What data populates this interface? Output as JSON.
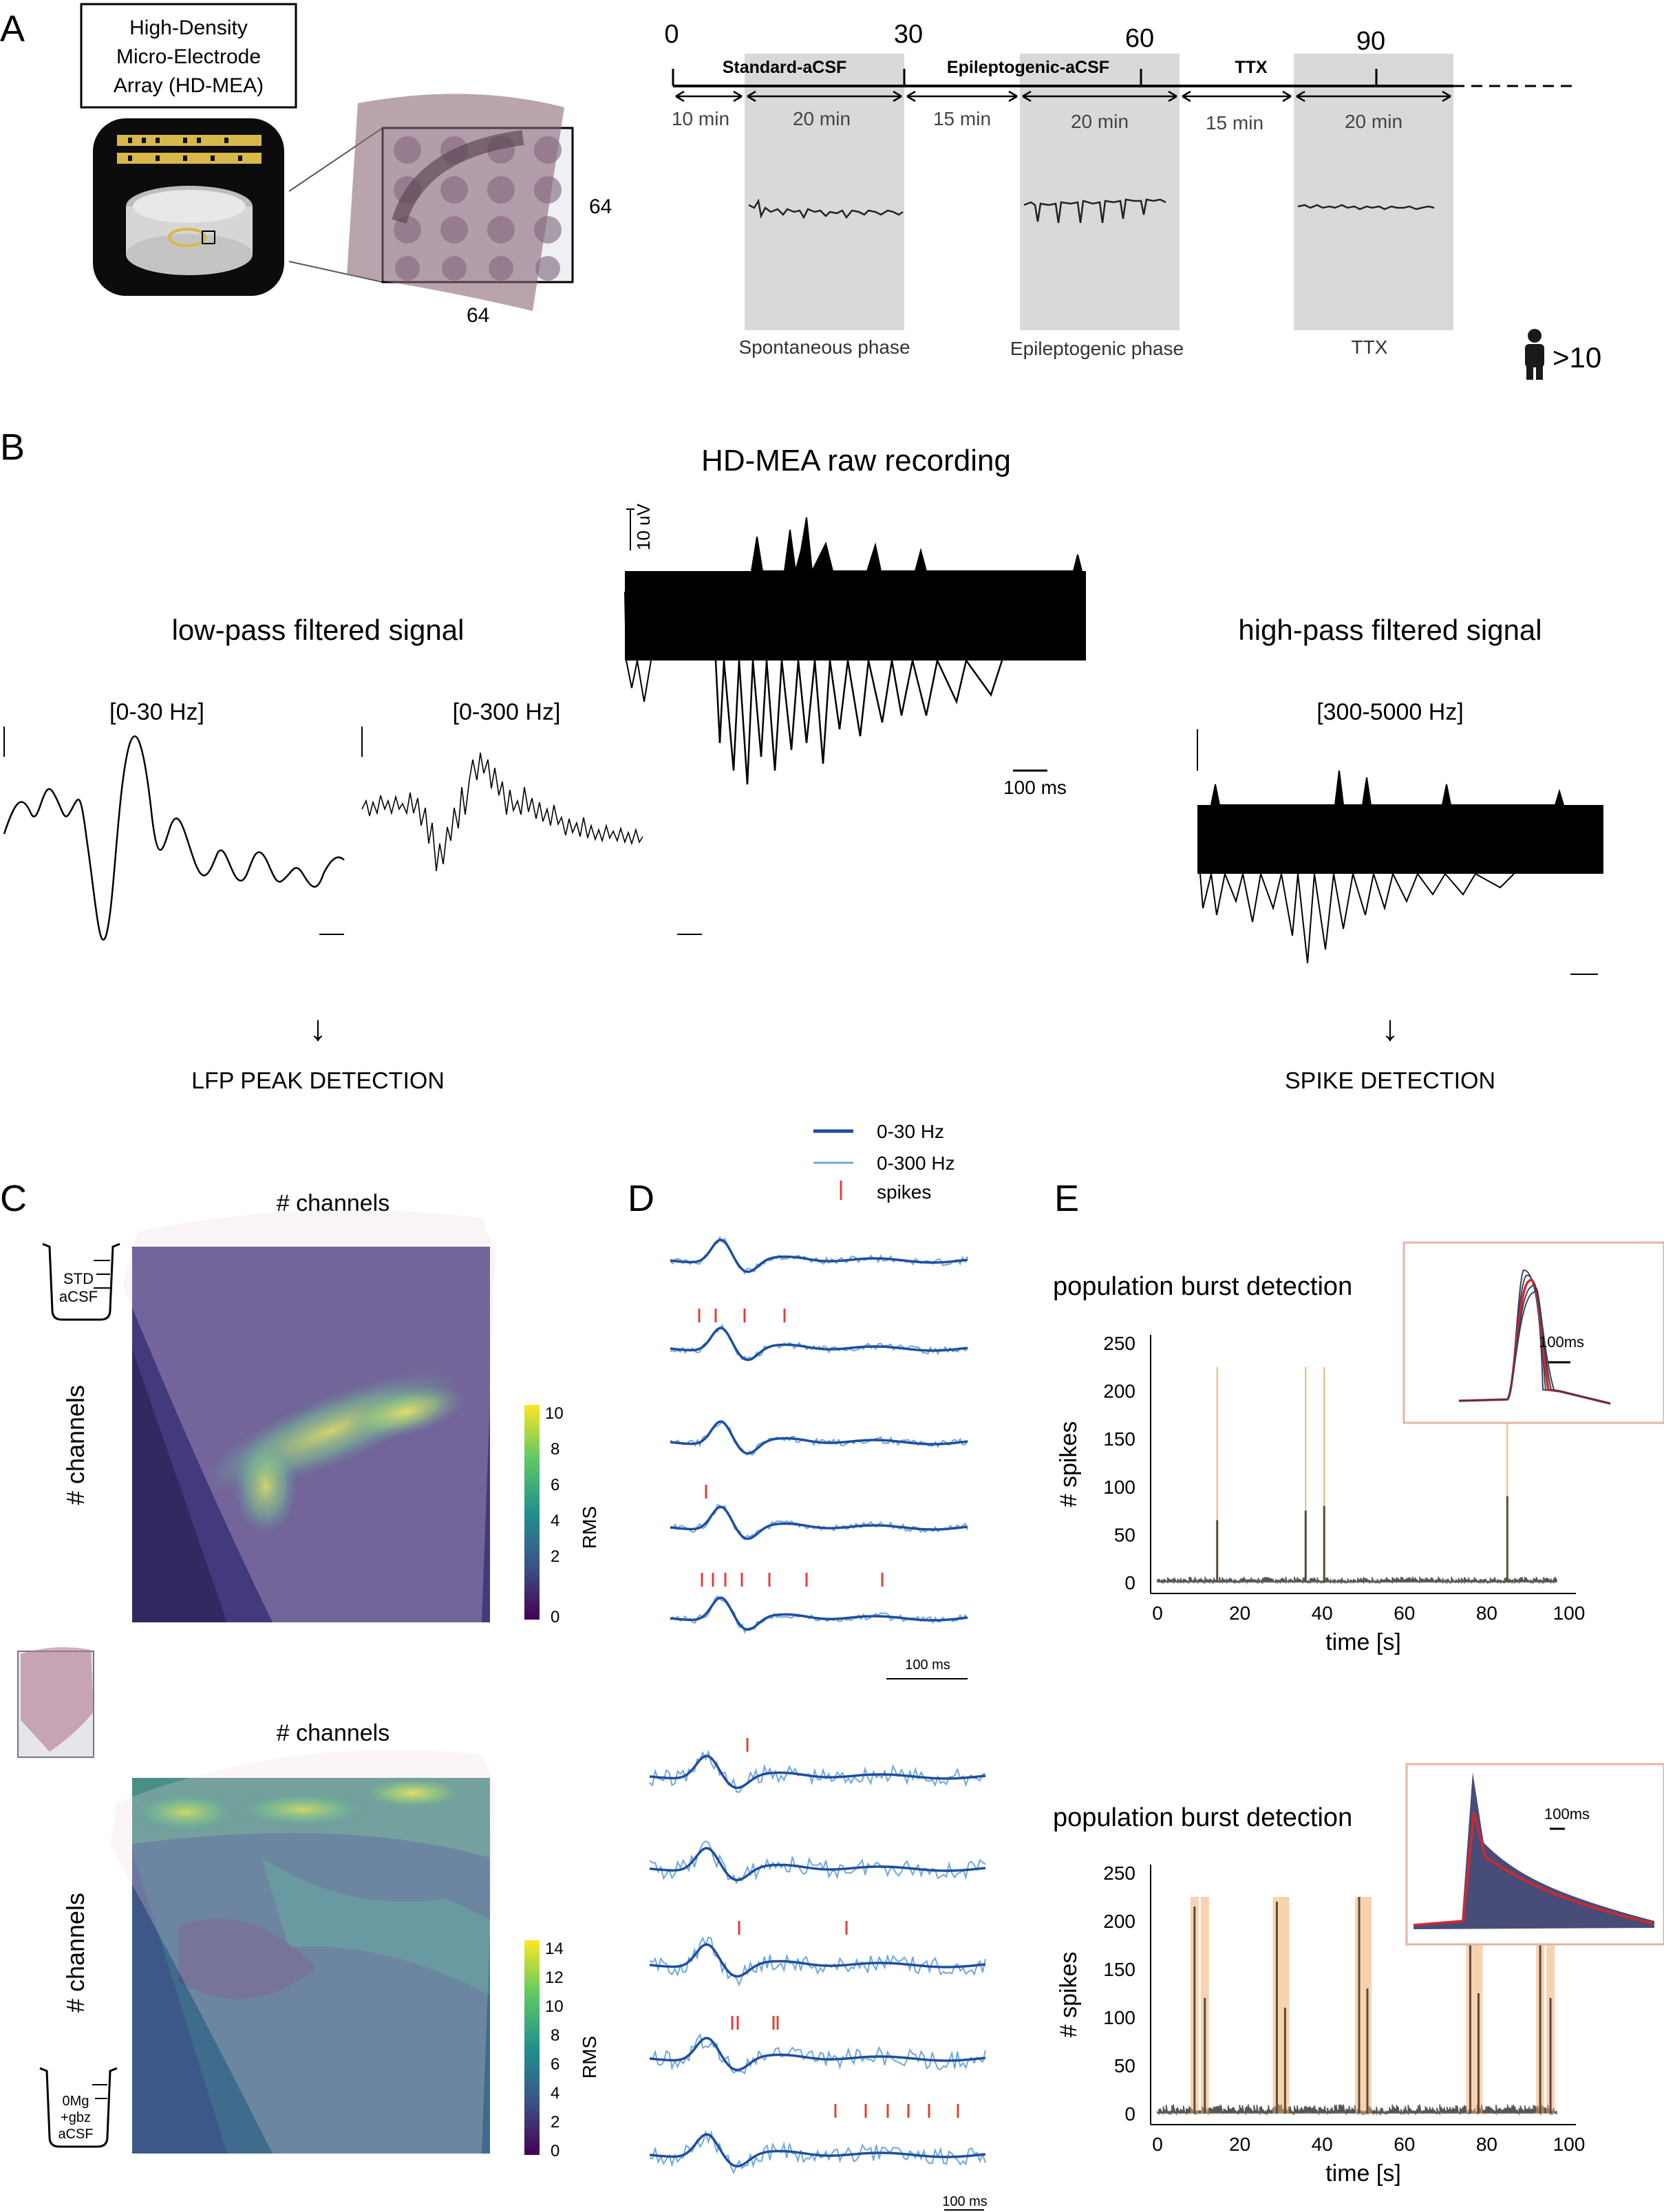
{
  "panel_letters": {
    "a": "A",
    "b": "B",
    "c": "C",
    "d": "D",
    "e": "E"
  },
  "panel_a": {
    "device_label": [
      "High-Density",
      "Micro-Electrode",
      "Array (HD-MEA)"
    ],
    "grid_size_right": "64",
    "grid_size_bottom": "64",
    "time_ticks": [
      "0",
      "30",
      "60",
      "90"
    ],
    "segments": [
      "Standard-aCSF",
      "Epileptogenic-aCSF",
      "TTX"
    ],
    "durations": [
      "10 min",
      "20 min",
      "15 min",
      "20 min",
      "15 min",
      "20 min"
    ],
    "phases": [
      "Spontaneous phase",
      "Epileptogenic phase",
      "TTX"
    ],
    "patients": ">10"
  },
  "panel_b": {
    "title": "HD-MEA raw recording",
    "raw_scale_v": "10 uV",
    "raw_scale_t": "100 ms",
    "low_title": "low-pass filtered signal",
    "low_band1": "[0-30 Hz]",
    "low_band2": "[0-300 Hz]",
    "high_title": "high-pass filtered signal",
    "high_band": "[300-5000 Hz]",
    "arrow": "↓",
    "lfp_detect": "LFP PEAK DETECTION",
    "spike_detect": "SPIKE DETECTION"
  },
  "panel_c": {
    "top_title": "# channels",
    "bottom_title": "# channels",
    "ylabel": "# channels",
    "beaker_top": [
      "STD",
      "aCSF"
    ],
    "beaker_bottom": [
      "0Mg",
      "+gbz",
      "aCSF"
    ],
    "colorbar_label": "RMS",
    "colorbar_top_ticks": [
      "10",
      "8",
      "6",
      "4",
      "2",
      "0"
    ],
    "colorbar_bottom_ticks": [
      "14",
      "12",
      "10",
      "8",
      "6",
      "4",
      "2",
      "0"
    ],
    "colors": {
      "viridis_low": "#440154",
      "viridis_mid": "#21918c",
      "viridis_high": "#fde725"
    }
  },
  "panel_d": {
    "legend": [
      "0-30 Hz",
      "0-300 Hz",
      "spikes"
    ],
    "scale_top": "100 ms",
    "scale_bottom": "100 ms",
    "colors": {
      "lfp30": "#1f4e9c",
      "lfp300": "#6fa8dc",
      "spike": "#e0403a"
    }
  },
  "panel_e": {
    "chart_data": [
      {
        "type": "bar",
        "title": "population burst detection",
        "xlabel": "time [s]",
        "ylabel": "# spikes",
        "xlim": [
          0,
          100
        ],
        "ylim": [
          0,
          250
        ],
        "x_ticks": [
          "0",
          "20",
          "40",
          "60",
          "80",
          "100"
        ],
        "y_ticks": [
          "250",
          "200",
          "150",
          "100",
          "50",
          "0"
        ],
        "burst_times": [
          14.5,
          36,
          40.5,
          85
        ],
        "burst_peaks": [
          65,
          75,
          80,
          90
        ],
        "baseline_spikes": 5,
        "inset_scale": "100ms"
      },
      {
        "type": "bar",
        "title": "population burst detection",
        "xlabel": "time [s]",
        "ylabel": "# spikes",
        "xlim": [
          0,
          100
        ],
        "ylim": [
          0,
          250
        ],
        "x_ticks": [
          "0",
          "20",
          "40",
          "60",
          "80",
          "100"
        ],
        "y_ticks": [
          "250",
          "200",
          "150",
          "100",
          "50",
          "0"
        ],
        "burst_times": [
          9,
          11.5,
          29,
          31,
          49,
          51,
          76,
          78,
          93,
          95.5
        ],
        "burst_peaks": [
          215,
          120,
          220,
          110,
          225,
          130,
          210,
          125,
          210,
          120
        ],
        "baseline_spikes": 8,
        "inset_scale": "100ms"
      }
    ],
    "colors": {
      "trace": "#555555",
      "burst": "#f0a860",
      "inset_border": "#e3b5a4",
      "inset_red": "#d62728"
    }
  }
}
